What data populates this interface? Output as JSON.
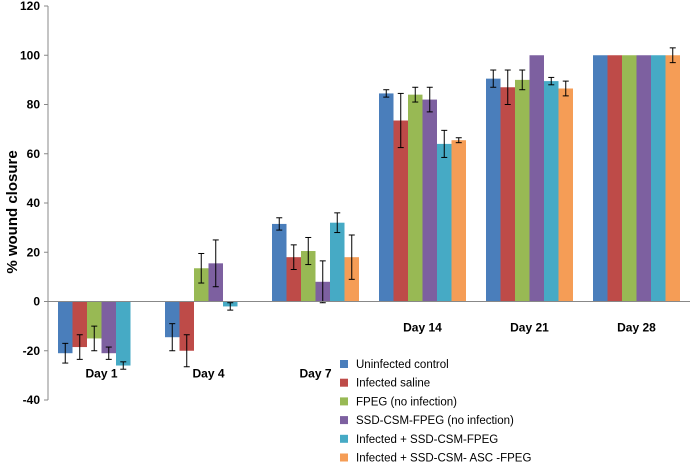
{
  "chart_data": {
    "type": "bar",
    "title": "",
    "xlabel": "",
    "ylabel": "% wound closure",
    "ylim": [
      -40,
      120
    ],
    "yticks": [
      -40,
      -20,
      0,
      20,
      40,
      60,
      80,
      100,
      120
    ],
    "categories": [
      "Day 1",
      "Day 4",
      "Day 7",
      "Day 14",
      "Day 21",
      "Day 28"
    ],
    "legend_position": "bottom-right",
    "series": [
      {
        "name": "Uninfected control",
        "color": "#4a7ebb",
        "values": [
          -21,
          -14.5,
          31.5,
          84.5,
          90.5,
          100
        ],
        "errors": [
          4,
          5.5,
          2.5,
          1.5,
          3.5,
          0
        ]
      },
      {
        "name": "Infected saline",
        "color": "#be4b48",
        "values": [
          -18.5,
          -20,
          18,
          73.5,
          87,
          100
        ],
        "errors": [
          5,
          6.5,
          5,
          11,
          7,
          0
        ]
      },
      {
        "name": "FPEG (no infection)",
        "color": "#98b954",
        "values": [
          -15,
          13.5,
          20.5,
          84,
          90,
          100
        ],
        "errors": [
          5,
          6,
          5.5,
          3,
          4,
          0
        ]
      },
      {
        "name": "SSD-CSM-FPEG (no infection)",
        "color": "#7d60a0",
        "values": [
          -21,
          15.5,
          8,
          82,
          100,
          100
        ],
        "errors": [
          2.5,
          9.5,
          8.5,
          5,
          0,
          0
        ]
      },
      {
        "name": "Infected + SSD-CSM-FPEG",
        "color": "#46aac5",
        "values": [
          -26,
          -2,
          32,
          64,
          89.5,
          100
        ],
        "errors": [
          1.5,
          1.5,
          4,
          5.5,
          1.5,
          0
        ]
      },
      {
        "name": "Infected + SSD-CSM- ASC -FPEG",
        "color": "#f59d56",
        "values": [
          0,
          0,
          18,
          65.5,
          86.5,
          100
        ],
        "errors": [
          0,
          0,
          9,
          1,
          3,
          3
        ]
      }
    ]
  }
}
